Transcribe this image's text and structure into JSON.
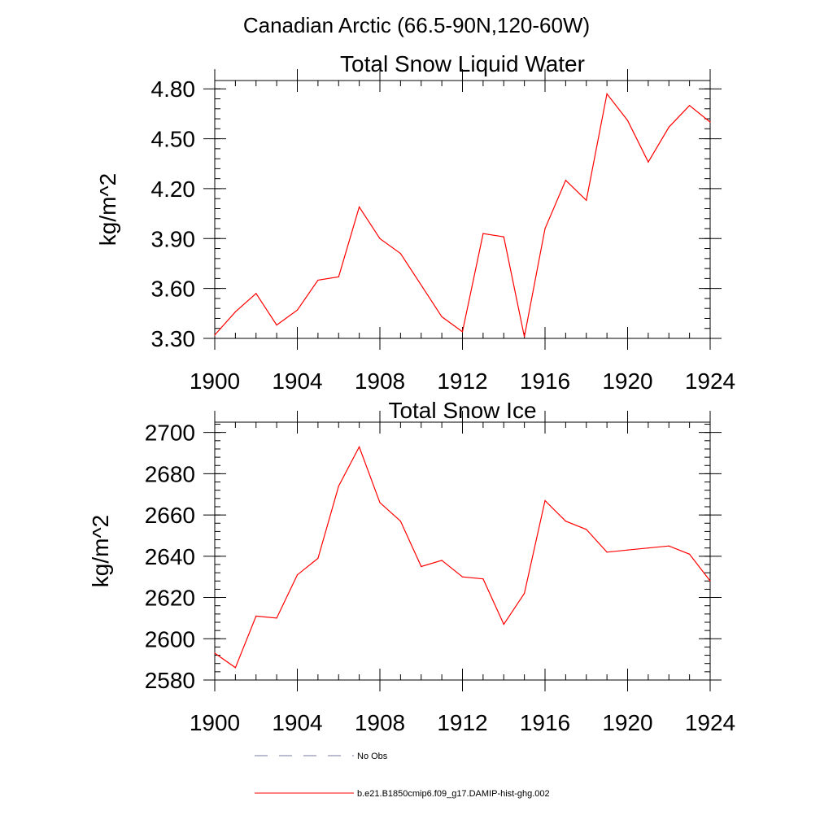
{
  "figure": {
    "title": "Canadian Arctic (66.5-90N,120-60W)"
  },
  "chart_data": [
    {
      "type": "line",
      "title": "Total Snow Liquid Water",
      "xlabel": "",
      "ylabel": "kg/m^2",
      "xlim": [
        1900,
        1924
      ],
      "ylim": [
        3.3,
        4.85
      ],
      "x_ticks": [
        1900,
        1904,
        1908,
        1912,
        1916,
        1920,
        1924
      ],
      "x_tick_labels": [
        "1900",
        "1904",
        "1908",
        "1912",
        "1916",
        "1920",
        "1924"
      ],
      "y_ticks": [
        3.3,
        3.6,
        3.9,
        4.2,
        4.5,
        4.8
      ],
      "y_tick_labels": [
        "3.30",
        "3.60",
        "3.90",
        "4.20",
        "4.50",
        "4.80"
      ],
      "x_minor_step": 1,
      "y_minor_step": 0.06,
      "grid": false,
      "color": "#ff0000",
      "series": [
        {
          "name": "b.e21.B1850cmip6.f09_g17.DAMIP-hist-ghg.002",
          "x": [
            1900,
            1901,
            1902,
            1903,
            1904,
            1905,
            1906,
            1907,
            1908,
            1909,
            1910,
            1911,
            1912,
            1913,
            1914,
            1915,
            1916,
            1917,
            1918,
            1919,
            1920,
            1921,
            1922,
            1923,
            1924
          ],
          "values": [
            3.32,
            3.46,
            3.57,
            3.38,
            3.47,
            3.65,
            3.67,
            4.09,
            3.9,
            3.81,
            3.62,
            3.43,
            3.34,
            3.93,
            3.91,
            3.31,
            3.96,
            4.25,
            4.13,
            4.77,
            4.61,
            4.36,
            4.57,
            4.7,
            4.6
          ]
        }
      ]
    },
    {
      "type": "line",
      "title": "Total Snow Ice",
      "xlabel": "",
      "ylabel": "kg/m^2",
      "xlim": [
        1900,
        1924
      ],
      "ylim": [
        2580,
        2705
      ],
      "x_ticks": [
        1900,
        1904,
        1908,
        1912,
        1916,
        1920,
        1924
      ],
      "x_tick_labels": [
        "1900",
        "1904",
        "1908",
        "1912",
        "1916",
        "1920",
        "1924"
      ],
      "y_ticks": [
        2580,
        2600,
        2620,
        2640,
        2660,
        2680,
        2700
      ],
      "y_tick_labels": [
        "2580",
        "2600",
        "2620",
        "2640",
        "2660",
        "2680",
        "2700"
      ],
      "x_minor_step": 1,
      "y_minor_step": 4,
      "grid": false,
      "color": "#ff0000",
      "series": [
        {
          "name": "b.e21.B1850cmip6.f09_g17.DAMIP-hist-ghg.002",
          "x": [
            1900,
            1901,
            1902,
            1903,
            1904,
            1905,
            1906,
            1907,
            1908,
            1909,
            1910,
            1911,
            1912,
            1913,
            1914,
            1915,
            1916,
            1917,
            1918,
            1919,
            1920,
            1921,
            1922,
            1923,
            1924
          ],
          "values": [
            2593,
            2586,
            2611,
            2610,
            2631,
            2639,
            2674,
            2693,
            2666,
            2657,
            2635,
            2638,
            2630,
            2629,
            2607,
            2622,
            2667,
            2657,
            2653,
            2642,
            2643,
            2644,
            2645,
            2641,
            2628
          ]
        }
      ]
    }
  ],
  "legend": {
    "placement": "bottom",
    "items": [
      {
        "label": "No Obs",
        "color": "#7a7aa0",
        "style": "dashed"
      },
      {
        "label": "b.e21.B1850cmip6.f09_g17.DAMIP-hist-ghg.002",
        "color": "#ff0000",
        "style": "solid"
      }
    ]
  }
}
